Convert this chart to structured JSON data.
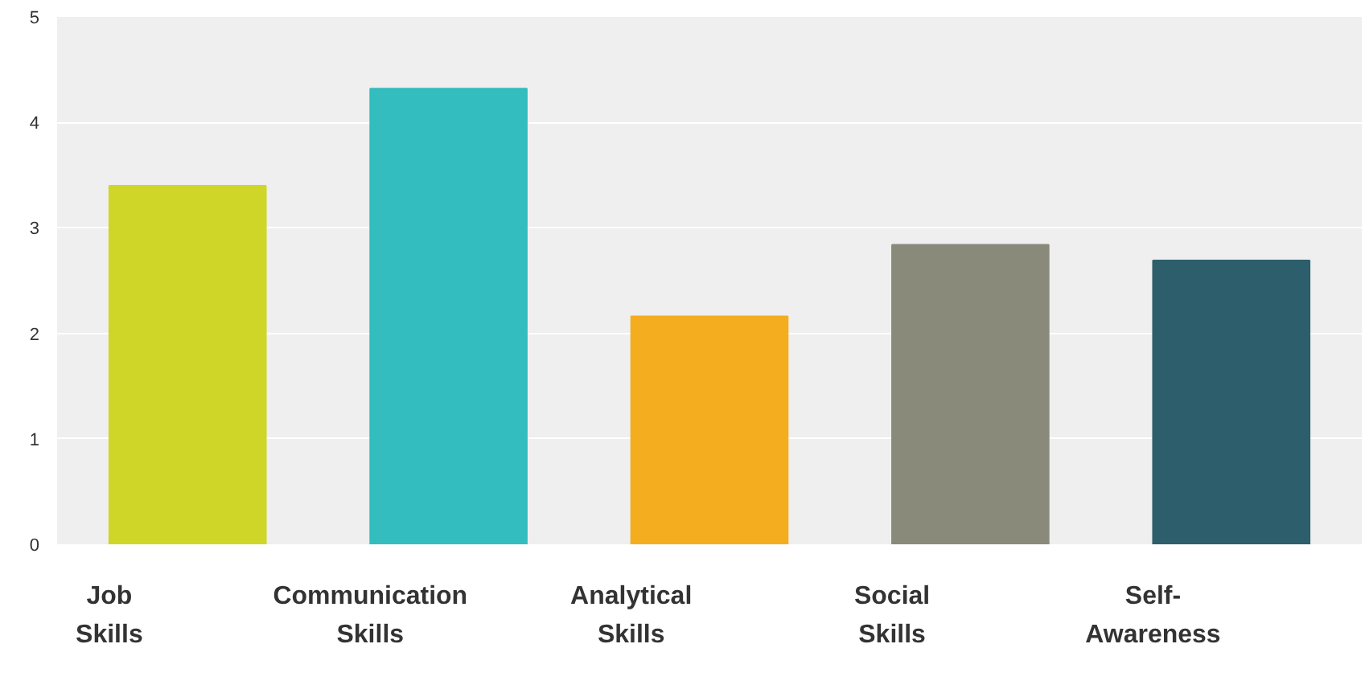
{
  "chart_data": {
    "type": "bar",
    "categories": [
      "Job Skills",
      "Communication Skills",
      "Analytical Skills",
      "Social Skills",
      "Self-Awareness"
    ],
    "values": [
      3.4,
      4.32,
      2.16,
      2.84,
      2.69
    ],
    "colors": [
      "#d0d627",
      "#33bdbe",
      "#f5ad20",
      "#898a7a",
      "#2d5e6b"
    ],
    "ylim": [
      0,
      5
    ],
    "yticks": [
      0,
      1,
      2,
      3,
      4,
      5
    ],
    "grid": "y"
  }
}
